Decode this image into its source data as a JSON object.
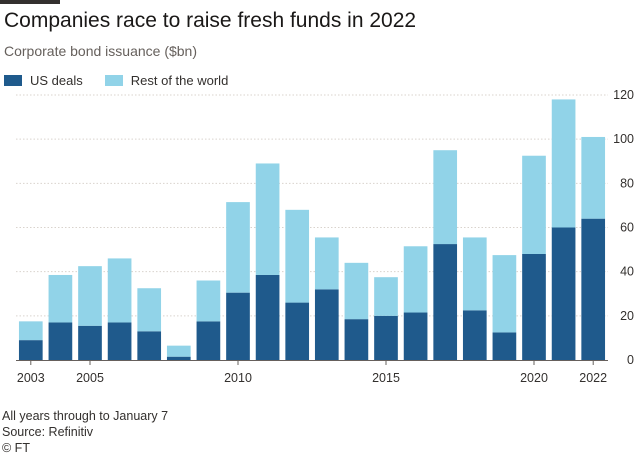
{
  "header": {
    "title": "Companies race to raise fresh funds in 2022",
    "subtitle": "Corporate bond issuance ($bn)"
  },
  "legend": [
    {
      "label": "US deals",
      "color": "#1f5a8c"
    },
    {
      "label": "Rest of the world",
      "color": "#91d3e8"
    }
  ],
  "footer": {
    "note": "All years through to January 7",
    "source": "Source: Refinitiv",
    "credit": "© FT"
  },
  "chart_data": {
    "type": "bar",
    "stacked": true,
    "title": "Companies race to raise fresh funds in 2022",
    "subtitle": "Corporate bond issuance ($bn)",
    "categories": [
      "2003",
      "2004",
      "2005",
      "2006",
      "2007",
      "2008",
      "2009",
      "2010",
      "2011",
      "2012",
      "2013",
      "2014",
      "2015",
      "2016",
      "2017",
      "2018",
      "2019",
      "2020",
      "2021",
      "2022"
    ],
    "x_tick_labels": [
      "2003",
      "2005",
      "2010",
      "2015",
      "2020",
      "2022"
    ],
    "series": [
      {
        "name": "US deals",
        "color": "#1f5a8c",
        "values": [
          9,
          17,
          15.5,
          17,
          13,
          1.5,
          17.5,
          30.5,
          38.5,
          26,
          32,
          18.5,
          20,
          21.5,
          52.5,
          22.5,
          12.5,
          48,
          60,
          64
        ]
      },
      {
        "name": "Rest of the world",
        "color": "#91d3e8",
        "values": [
          8.5,
          21.5,
          27,
          29,
          19.5,
          5,
          18.5,
          41,
          50.5,
          42,
          23.5,
          25.5,
          17.5,
          30,
          42.5,
          33,
          35,
          44.5,
          58,
          37
        ]
      }
    ],
    "totals": [
      17.5,
      38.5,
      42.5,
      46,
      32.5,
      6.5,
      36,
      71.5,
      89,
      68,
      55.5,
      44,
      37.5,
      51.5,
      95,
      55.5,
      47.5,
      92.5,
      118,
      101
    ],
    "ylim": [
      0,
      120
    ],
    "yticks": [
      0,
      20,
      40,
      60,
      80,
      100,
      120
    ],
    "y_axis_position": "right",
    "grid": true,
    "legend_position": "top-left"
  }
}
